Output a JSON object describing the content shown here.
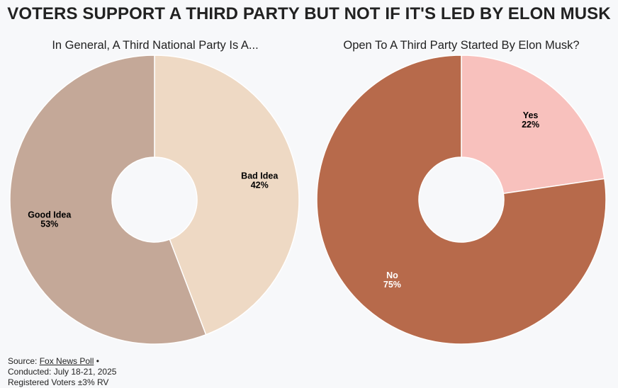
{
  "title": "VOTERS SUPPORT A THIRD PARTY BUT NOT IF IT'S LED BY ELON MUSK",
  "chart_data": [
    {
      "type": "pie",
      "donut": true,
      "title": "In General, A Third National Party Is A...",
      "slices": [
        {
          "label": "Bad Idea",
          "value": 42,
          "value_label": "42%",
          "color": "#eed9c4",
          "text_color": "#000000"
        },
        {
          "label": "Good Idea",
          "value": 53,
          "value_label": "53%",
          "color": "#c4a898",
          "text_color": "#000000"
        }
      ]
    },
    {
      "type": "pie",
      "donut": true,
      "title": "Open To A Third Party Started By Elon Musk?",
      "slices": [
        {
          "label": "Yes",
          "value": 22,
          "value_label": "22%",
          "color": "#f8c1bd",
          "text_color": "#000000"
        },
        {
          "label": "No",
          "value": 75,
          "value_label": "75%",
          "color": "#b76a4b",
          "text_color": "#ffffff"
        }
      ]
    }
  ],
  "footer": {
    "source_prefix": "Source: ",
    "source_link": "Fox News Poll",
    "source_suffix": " •",
    "conducted": "Conducted: July 18-21, 2025",
    "registered": "Registered Voters ±3% RV"
  },
  "colors": {
    "background": "#f7f8fa",
    "separator": "#ffffff"
  }
}
